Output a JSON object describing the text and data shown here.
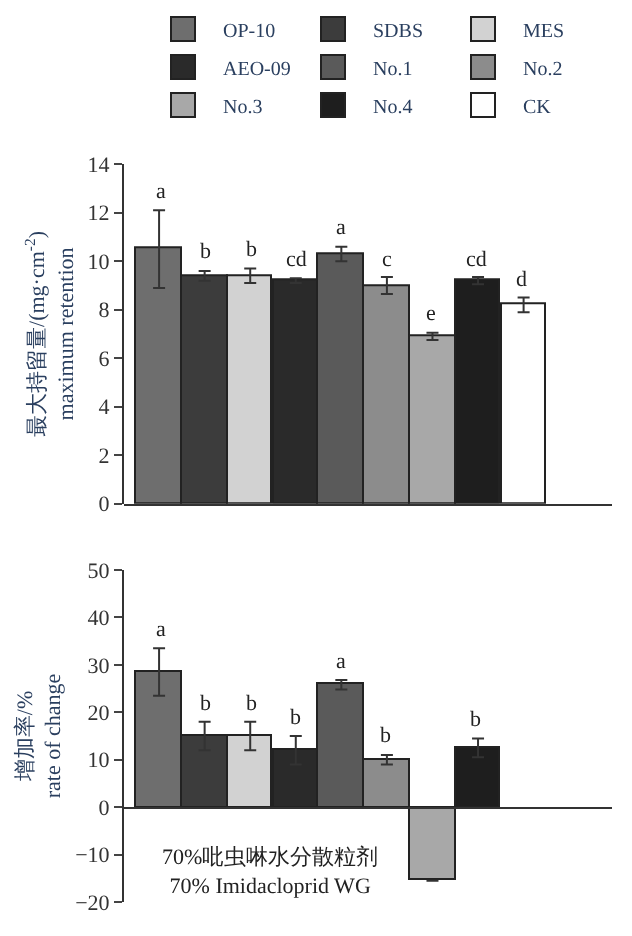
{
  "chart_data": [
    {
      "type": "bar",
      "categories": [
        null
      ],
      "ylabel": "最大持留量/(mg·cm$^{-2}$)\nmaximum retention",
      "ylim": [
        0,
        14
      ],
      "yticks": [
        0,
        2,
        4,
        6,
        8,
        10,
        12,
        14
      ],
      "legend": "top",
      "series": [
        {
          "name": "OP-10",
          "color": "#6e6e6e",
          "values": [
            10.5
          ],
          "errors": [
            1.6
          ],
          "value_labels": [
            "a"
          ]
        },
        {
          "name": "SDBS",
          "color": "#3c3c3c",
          "values": [
            9.4
          ],
          "errors": [
            0.2
          ],
          "value_labels": [
            "b"
          ]
        },
        {
          "name": "MES",
          "color": "#d2d2d2",
          "values": [
            9.4
          ],
          "errors": [
            0.3
          ],
          "value_labels": [
            "b"
          ]
        },
        {
          "name": "AEO-09",
          "color": "#2a2a2a",
          "values": [
            9.2
          ],
          "errors": [
            0.1
          ],
          "value_labels": [
            "cd"
          ]
        },
        {
          "name": "No.1",
          "color": "#5a5a5a",
          "values": [
            10.3
          ],
          "errors": [
            0.3
          ],
          "value_labels": [
            "a"
          ]
        },
        {
          "name": "No.2",
          "color": "#8c8c8c",
          "values": [
            9.0
          ],
          "errors": [
            0.35
          ],
          "value_labels": [
            "c"
          ]
        },
        {
          "name": "No.3",
          "color": "#a8a8a8",
          "values": [
            6.9
          ],
          "errors": [
            0.15
          ],
          "value_labels": [
            "e"
          ]
        },
        {
          "name": "No.4",
          "color": "#1e1e1e",
          "values": [
            9.2
          ],
          "errors": [
            0.15
          ],
          "value_labels": [
            "cd"
          ]
        },
        {
          "name": "CK",
          "color": "#ffffff",
          "values": [
            8.2
          ],
          "errors": [
            0.3
          ],
          "value_labels": [
            "d"
          ]
        }
      ]
    },
    {
      "type": "bar",
      "categories": [
        null
      ],
      "ylabel": "增加率/%\nrate of change",
      "ylim": [
        -20,
        50
      ],
      "yticks": [
        -20,
        -10,
        0,
        10,
        20,
        30,
        40,
        50
      ],
      "legend": false,
      "annotations": [
        "70%吡虫啉水分散粒剂\n70% Imidacloprid WG"
      ],
      "series": [
        {
          "color": "#6e6e6e",
          "values": [
            28.5
          ],
          "errors": [
            5
          ],
          "value_labels": [
            "a"
          ]
        },
        {
          "color": "#3c3c3c",
          "values": [
            15
          ],
          "errors": [
            3
          ],
          "value_labels": [
            "b"
          ]
        },
        {
          "color": "#d2d2d2",
          "values": [
            15
          ],
          "errors": [
            3
          ],
          "value_labels": [
            "b"
          ]
        },
        {
          "color": "#2a2a2a",
          "values": [
            12
          ],
          "errors": [
            3
          ],
          "value_labels": [
            "b"
          ]
        },
        {
          "color": "#5a5a5a",
          "values": [
            25.8
          ],
          "errors": [
            1
          ],
          "value_labels": [
            "a"
          ]
        },
        {
          "color": "#8c8c8c",
          "values": [
            10
          ],
          "errors": [
            1
          ],
          "value_labels": [
            "b"
          ]
        },
        {
          "color": "#a8a8a8",
          "values": [
            -15.5
          ],
          "errors": [
            null
          ],
          "value_labels": [
            null
          ]
        },
        {
          "color": "#1e1e1e",
          "values": [
            12.5
          ],
          "errors": [
            2
          ],
          "value_labels": [
            "b"
          ]
        },
        {
          "color": "#ffffff",
          "values": [
            null
          ],
          "errors": [
            null
          ],
          "value_labels": [
            null
          ]
        }
      ]
    }
  ]
}
